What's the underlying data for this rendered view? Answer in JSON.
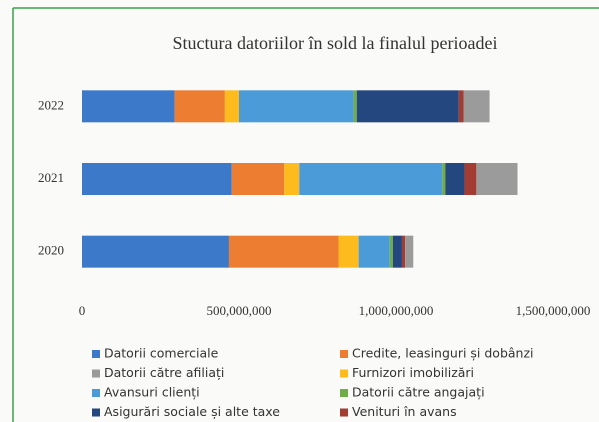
{
  "chart_data": {
    "type": "stacked_barh",
    "title": "Stuctura datoriilor în sold la finalul perioadei",
    "categories": [
      "2020",
      "2021",
      "2022"
    ],
    "series": [
      {
        "name": "Datorii comerciale",
        "color": "#3d79c9",
        "values": [
          468000000,
          477000000,
          295000000
        ]
      },
      {
        "name": "Credite, leasinguri și dobânzi",
        "color": "#ed7d31",
        "values": [
          349000000,
          167000000,
          160000000
        ]
      },
      {
        "name": "Furnizori imobilizări",
        "color": "#fdbb1e",
        "values": [
          64000000,
          48000000,
          45000000
        ]
      },
      {
        "name": "Avansuri clienți",
        "color": "#4a9bd8",
        "values": [
          99000000,
          455000000,
          365000000
        ]
      },
      {
        "name": "Datorii către angajați",
        "color": "#70ad47",
        "values": [
          10000000,
          10000000,
          10000000
        ]
      },
      {
        "name": "Asigurări sociale și alte taxe",
        "color": "#23477e",
        "values": [
          29000000,
          61000000,
          325000000
        ]
      },
      {
        "name": "Venituri în avans",
        "color": "#a33d33",
        "values": [
          10000000,
          38000000,
          15000000
        ]
      },
      {
        "name": "Datorii către afiliați",
        "color": "#9b9b9b",
        "values": [
          26000000,
          131000000,
          83000000
        ]
      }
    ],
    "xlim": [
      0,
      1500000000
    ],
    "xticks": [
      0,
      {
        "value": 500000000,
        "label": "500,000,000"
      },
      {
        "value": 1000000000,
        "label": "1,000,000,000"
      },
      {
        "value": 1500000000,
        "label": "1,500,000,000"
      }
    ]
  }
}
